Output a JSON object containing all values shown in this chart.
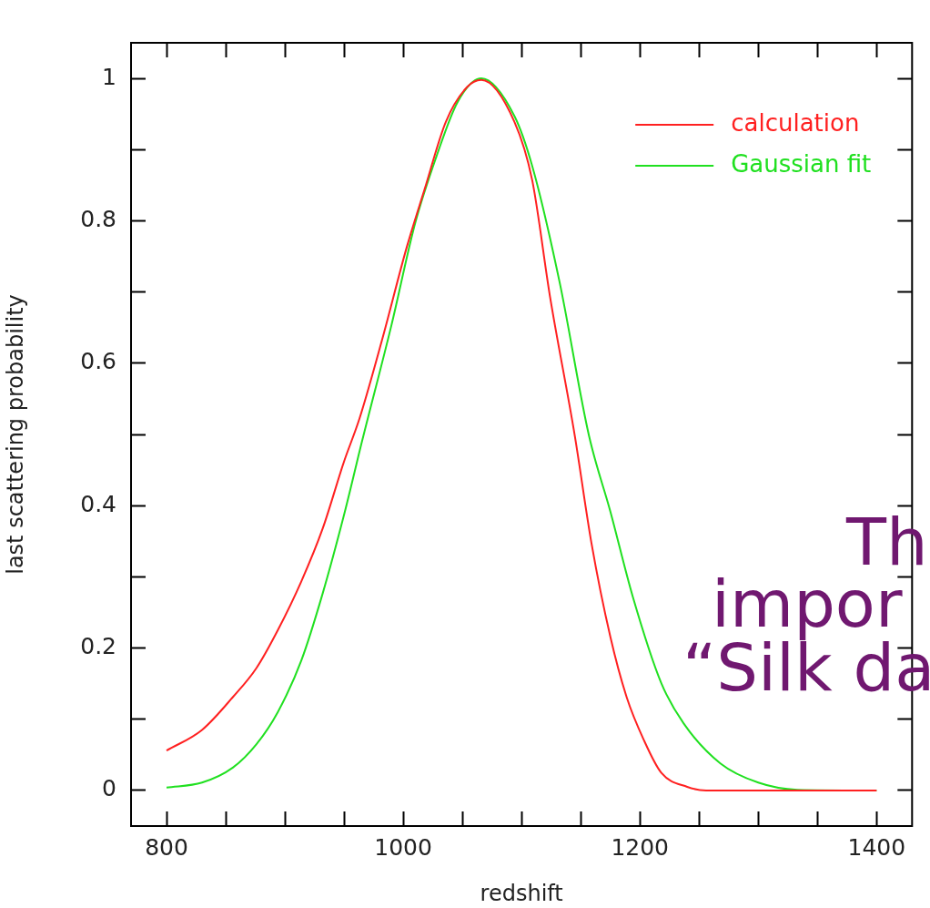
{
  "chart_data": {
    "type": "line",
    "xlabel": "redshift",
    "ylabel": "last scattering probability",
    "xlim": [
      770,
      1430
    ],
    "ylim": [
      -0.05,
      1.05
    ],
    "xticks": [
      800,
      {
        "value": 850,
        "label": null
      },
      {
        "value": 900,
        "label": null
      },
      {
        "value": 950,
        "label": null
      },
      1000,
      {
        "value": 1050,
        "label": null
      },
      {
        "value": 1100,
        "label": null
      },
      {
        "value": 1150,
        "label": null
      },
      1200,
      {
        "value": 1250,
        "label": null
      },
      {
        "value": 1300,
        "label": null
      },
      {
        "value": 1350,
        "label": null
      },
      1400
    ],
    "yticks": [
      0,
      {
        "value": 0.1,
        "label": null
      },
      0.2,
      {
        "value": 0.3,
        "label": null
      },
      0.4,
      {
        "value": 0.5,
        "label": null
      },
      0.6,
      {
        "value": 0.7,
        "label": null
      },
      0.8,
      {
        "value": 0.9,
        "label": null
      },
      1
    ],
    "grid": false,
    "legend": "top right",
    "marker": "none",
    "line_style": "solid",
    "annotations": [
      "Th",
      "impor",
      "“Silk da"
    ],
    "series": [
      {
        "name": "calculation",
        "color": "#ff2020",
        "x": [
          800,
          830,
          856,
          876,
          894,
          914,
          932,
          950,
          963,
          982,
          1003,
          1018,
          1036,
          1054,
          1066,
          1094,
          1109,
          1124,
          1145,
          1159,
          1175,
          1189,
          1203,
          1218,
          1240,
          1256,
          1400
        ],
        "values": [
          0.056,
          0.085,
          0.131,
          0.172,
          0.225,
          0.294,
          0.368,
          0.462,
          0.522,
          0.632,
          0.763,
          0.844,
          0.939,
          0.988,
          0.998,
          0.939,
          0.857,
          0.694,
          0.498,
          0.348,
          0.216,
          0.13,
          0.072,
          0.025,
          0.005,
          0,
          0
        ]
      },
      {
        "name": "Gaussian fit",
        "color": "#20e020",
        "x": [
          800,
          830,
          856,
          876,
          894,
          914,
          932,
          950,
          965,
          990,
          1010,
          1028,
          1046,
          1066,
          1094,
          1109,
          1132,
          1157,
          1175,
          1194,
          1218,
          1237,
          1268,
          1300,
          1333,
          1400
        ],
        "values": [
          0.004,
          0.011,
          0.032,
          0.065,
          0.11,
          0.183,
          0.277,
          0.387,
          0.489,
          0.653,
          0.796,
          0.89,
          0.967,
          1,
          0.947,
          0.877,
          0.715,
          0.498,
          0.392,
          0.272,
          0.151,
          0.094,
          0.038,
          0.011,
          0.001,
          0
        ]
      }
    ]
  }
}
